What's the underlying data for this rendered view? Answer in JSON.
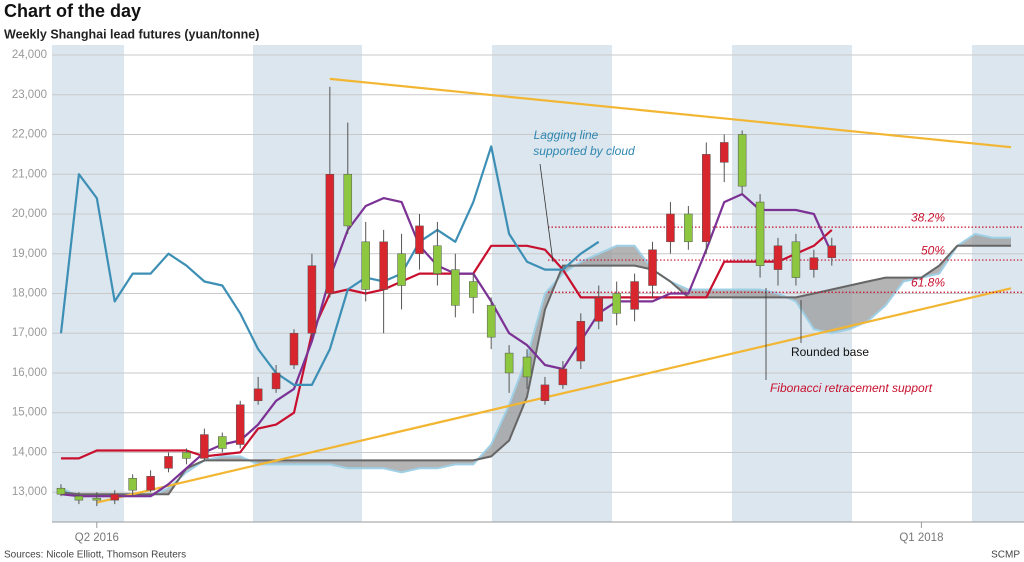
{
  "chart_data": {
    "type": "candlestick",
    "title": "Chart of the day",
    "subtitle": "Weekly Shanghai lead futures (yuan/tonne)",
    "source": "Sources: Nicole Elliott, Thomson Reuters",
    "credit": "SCMP",
    "categories": [
      null,
      null,
      "Q2 2016",
      null,
      null,
      null,
      null,
      null,
      null,
      null,
      null,
      null,
      null,
      null,
      null,
      null,
      null,
      null,
      null,
      null,
      null,
      null,
      null,
      null,
      null,
      null,
      null,
      null,
      null,
      null,
      null,
      null,
      null,
      null,
      null,
      null,
      null,
      null,
      null,
      null,
      null,
      null,
      null,
      null,
      null,
      null,
      null,
      null,
      "Q1 2018",
      null,
      null,
      null,
      null,
      null
    ],
    "ylim": [
      12250,
      24000
    ],
    "yticks": [
      {
        "value": 13000,
        "label": "13,000"
      },
      {
        "value": 14000,
        "label": "14,000"
      },
      {
        "value": 15000,
        "label": "15,000"
      },
      {
        "value": 16000,
        "label": "16,000"
      },
      {
        "value": 17000,
        "label": "17,000"
      },
      {
        "value": 18000,
        "label": "18,000"
      },
      {
        "value": 19000,
        "label": "19,000"
      },
      {
        "value": 20000,
        "label": "20,000"
      },
      {
        "value": 21000,
        "label": "21,000"
      },
      {
        "value": 22000,
        "label": "22,000"
      },
      {
        "value": 23000,
        "label": "23,000"
      },
      {
        "value": 24000,
        "label": "24,000"
      }
    ],
    "grid": true,
    "up_color": "#d7262e",
    "down_color": "#8dc63f",
    "candles": {
      "open": [
        13100,
        12900,
        12850,
        12800,
        13350,
        13050,
        13600,
        14000,
        13850,
        14400,
        14200,
        15300,
        15600,
        16200,
        17000,
        18000,
        21000,
        19300,
        18100,
        19000,
        19000,
        19200,
        18600,
        18300,
        17700,
        16500,
        16400,
        15300,
        15700,
        16300,
        17300,
        18000,
        17600,
        18200,
        19300,
        20000,
        19300,
        21300,
        22000,
        20300,
        18600,
        19300,
        18600,
        18900,
        null,
        null,
        null,
        null,
        null,
        null,
        null,
        null,
        null,
        null
      ],
      "high": [
        13200,
        13000,
        13000,
        13050,
        13450,
        13550,
        14000,
        14100,
        14600,
        14500,
        15300,
        15900,
        16200,
        17100,
        19000,
        23200,
        22300,
        19800,
        19600,
        19500,
        20000,
        19800,
        19000,
        18500,
        17900,
        16700,
        16600,
        15900,
        16300,
        17500,
        18200,
        18300,
        18500,
        19300,
        20300,
        20200,
        21800,
        22000,
        22100,
        20500,
        19400,
        19500,
        19100,
        19400,
        null,
        null,
        null,
        null,
        null,
        null,
        null,
        null,
        null,
        null
      ],
      "low": [
        12900,
        12700,
        12650,
        12700,
        12900,
        13000,
        13500,
        13700,
        13800,
        14000,
        14100,
        15200,
        15500,
        16100,
        16900,
        17900,
        19500,
        17800,
        17000,
        17600,
        18600,
        18200,
        17400,
        17500,
        16600,
        15500,
        15600,
        15200,
        15600,
        16100,
        17100,
        17200,
        17300,
        17900,
        19000,
        19100,
        19000,
        20800,
        20500,
        18400,
        18200,
        18200,
        18400,
        18700,
        null,
        null,
        null,
        null,
        null,
        null,
        null,
        null,
        null,
        null
      ],
      "close": [
        12950,
        12800,
        12800,
        12950,
        13050,
        13400,
        13900,
        13850,
        14450,
        14100,
        15200,
        15600,
        16000,
        17000,
        18700,
        21000,
        19700,
        18100,
        19300,
        18200,
        19700,
        18500,
        17700,
        17900,
        16900,
        16000,
        15900,
        15700,
        16100,
        17300,
        17900,
        17500,
        18300,
        19100,
        20000,
        19300,
        21500,
        21800,
        20700,
        18700,
        19200,
        18400,
        18900,
        19200,
        null,
        null,
        null,
        null,
        null,
        null,
        null,
        null,
        null,
        null
      ]
    },
    "cloud": {
      "fill": "#9b9b9b",
      "span_a": {
        "color": "#9fd0e6",
        "values": [
          13100,
          12900,
          12900,
          12900,
          12900,
          12900,
          13100,
          13500,
          13800,
          13900,
          13900,
          13700,
          13700,
          13700,
          13700,
          13700,
          13600,
          13600,
          13600,
          13500,
          13600,
          13600,
          13700,
          13700,
          14200,
          15200,
          16400,
          18000,
          18500,
          18800,
          19000,
          19200,
          19200,
          18600,
          18300,
          18100,
          18100,
          18100,
          18100,
          18100,
          18000,
          17800,
          17100,
          17000,
          17100,
          17300,
          17700,
          18300,
          18400,
          18500,
          19200,
          19500,
          19400,
          19400
        ]
      },
      "span_b": {
        "color": "#666666",
        "values": [
          13000,
          12950,
          12950,
          12950,
          12950,
          12950,
          12950,
          13600,
          13800,
          13800,
          13800,
          13800,
          13800,
          13800,
          13800,
          13800,
          13800,
          13800,
          13800,
          13800,
          13800,
          13800,
          13800,
          13800,
          13900,
          14300,
          15400,
          17600,
          18700,
          18700,
          18700,
          18700,
          18700,
          18600,
          18300,
          17900,
          17900,
          17900,
          17900,
          17900,
          17900,
          17900,
          18000,
          18100,
          18200,
          18300,
          18400,
          18400,
          18400,
          18700,
          19200,
          19200,
          19200,
          19200
        ]
      }
    },
    "lines": [
      {
        "color": "#c8102e",
        "values": [
          13850,
          13850,
          14050,
          14050,
          14050,
          14050,
          14050,
          14050,
          13900,
          13950,
          14000,
          14600,
          14700,
          15000,
          17000,
          18000,
          18100,
          18000,
          18100,
          18300,
          18500,
          18500,
          18500,
          18500,
          19200,
          19200,
          19200,
          19100,
          18600,
          17900,
          17900,
          17900,
          17900,
          17900,
          17900,
          17900,
          17900,
          18800,
          18800,
          18800,
          18800,
          19000,
          19200,
          19600,
          null,
          null,
          null,
          null,
          null,
          null,
          null,
          null,
          null,
          null
        ]
      },
      {
        "color": "#7b3294",
        "values": [
          12950,
          12900,
          12900,
          12900,
          12900,
          12900,
          13200,
          13600,
          14000,
          14200,
          14300,
          14700,
          15300,
          15600,
          16800,
          18400,
          19600,
          20200,
          20400,
          20300,
          19200,
          18700,
          18500,
          18500,
          17800,
          17000,
          16700,
          16200,
          16100,
          16800,
          17500,
          17800,
          17800,
          17800,
          18000,
          18000,
          19100,
          20300,
          20500,
          20100,
          20100,
          20100,
          20000,
          19000,
          null,
          null,
          null,
          null,
          null,
          null,
          null,
          null,
          null,
          null
        ]
      },
      {
        "color": "#3d8fb5",
        "values": [
          17000,
          21000,
          20400,
          17800,
          18500,
          18500,
          19000,
          18700,
          18300,
          18200,
          17500,
          16600,
          16000,
          15700,
          15700,
          16600,
          18100,
          18400,
          18300,
          18500,
          19300,
          19600,
          19300,
          20300,
          21700,
          19500,
          18800,
          18600,
          18600,
          19000,
          19300,
          null,
          null,
          null,
          null,
          null,
          null,
          null,
          null,
          null,
          null,
          null,
          null,
          null,
          null,
          null,
          null,
          null,
          null,
          null,
          null,
          null,
          null,
          null
        ]
      }
    ],
    "trendlines": [
      {
        "color": "#f2b632",
        "x": [
          15,
          53
        ],
        "values": [
          23400,
          21680
        ]
      },
      {
        "color": "#f2b632",
        "x": [
          2,
          53
        ],
        "values": [
          12740,
          18130
        ]
      }
    ],
    "fib_color": "#c8102e",
    "fib_levels": [
      {
        "label": "38.2%",
        "value": 19670
      },
      {
        "label": "50%",
        "value": 18840
      },
      {
        "label": "61.8%",
        "value": 18030
      }
    ],
    "annotations": [
      "Lagging line",
      "supported by cloud",
      "Rounded base",
      "Fibonacci retracement support"
    ]
  }
}
